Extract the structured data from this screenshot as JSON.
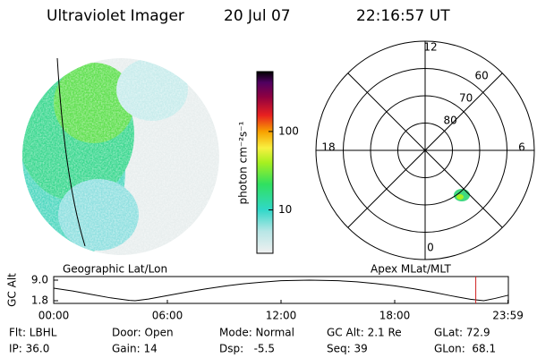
{
  "header": {
    "title": "Ultraviolet Imager",
    "date": "20 Jul 07",
    "time": "22:16:57 UT"
  },
  "image_label": "Geographic Lat/Lon",
  "colorbar": {
    "label": "photon cm⁻²s⁻¹",
    "scale": "log",
    "lim": [
      2.8,
      580
    ],
    "ticks": [
      10,
      100
    ]
  },
  "polar": {
    "label": "Apex MLat/MLT",
    "lat_lim": [
      50,
      90
    ],
    "lat_ticks": [
      80,
      70,
      60
    ],
    "mlt_ticks": [
      12,
      18,
      6,
      0
    ]
  },
  "altitude_plot": {
    "ylabel": "GC Alt",
    "ylim": [
      1.8,
      9.0
    ],
    "yticks": [
      {
        "value": 9.0,
        "label": "9.0"
      },
      {
        "value": 1.8,
        "label": "1.8"
      }
    ],
    "xlim": [
      0,
      24
    ],
    "xticks": [
      {
        "value": 0,
        "label": "00:00"
      },
      {
        "value": 6,
        "label": "06:00"
      },
      {
        "value": 12,
        "label": "12:00"
      },
      {
        "value": 18,
        "label": "18:00"
      },
      {
        "value": 23.98,
        "label": "23:59"
      }
    ],
    "x": [
      0,
      1,
      2,
      3,
      4,
      4.3,
      5,
      6,
      7,
      8,
      9,
      10,
      11,
      12,
      13.5,
      15,
      16,
      17,
      18,
      19,
      20,
      21,
      22,
      22.7,
      23.3,
      23.98
    ],
    "values": [
      6.2,
      5.2,
      4.0,
      2.8,
      1.9,
      1.8,
      2.4,
      3.6,
      4.8,
      5.9,
      6.9,
      7.7,
      8.3,
      8.8,
      9.0,
      8.8,
      8.4,
      7.8,
      7.0,
      6.0,
      4.8,
      3.5,
      2.3,
      1.8,
      2.6,
      3.7
    ],
    "current_time": 22.28
  },
  "info": {
    "rows": [
      [
        "Flt: LBHL",
        "Door: Open",
        "Mode: Normal",
        "GC Alt: 2.1 Re",
        "GLat: 72.9"
      ],
      [
        "IP: 36.0",
        "Gain: 14",
        "Dsp:   -5.5",
        "Seq: 39",
        "GLon:  68.1"
      ]
    ]
  }
}
